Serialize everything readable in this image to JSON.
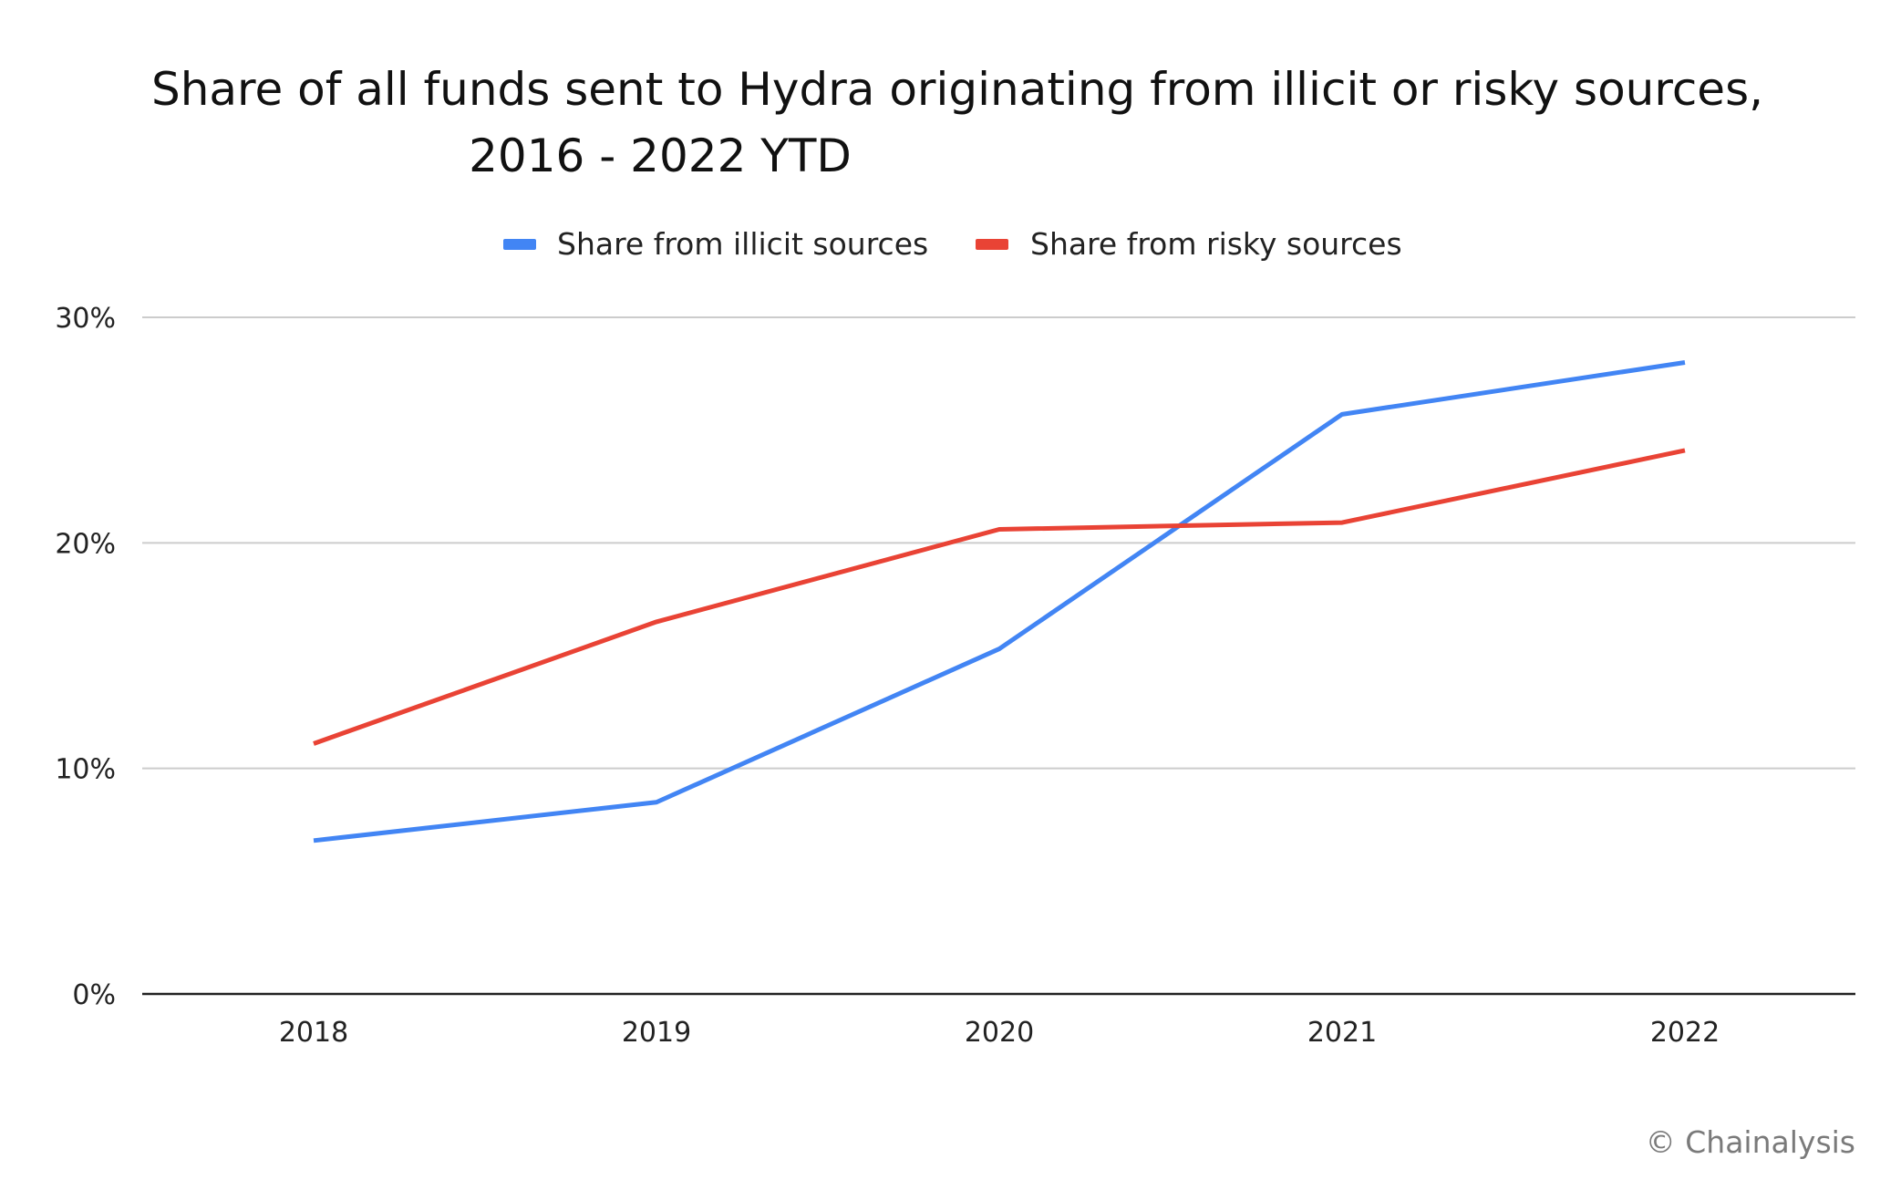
{
  "chart_data": {
    "type": "line",
    "title_lines": [
      "Share of all funds sent to Hydra originating from illicit or risky sources,",
      "2016 - 2022 YTD"
    ],
    "x": [
      "2018",
      "2019",
      "2020",
      "2021",
      "2022"
    ],
    "series": [
      {
        "name": "Share from illicit sources",
        "color": "#4285F4",
        "values": [
          6.8,
          8.5,
          15.3,
          25.7,
          28.0
        ]
      },
      {
        "name": "Share from risky sources",
        "color": "#E94335",
        "values": [
          11.1,
          16.5,
          20.6,
          20.9,
          24.1
        ]
      }
    ],
    "ylim": [
      0,
      30
    ],
    "y_ticks": [
      0,
      10,
      20,
      30
    ],
    "y_tick_labels": [
      "0%",
      "10%",
      "20%",
      "30%"
    ],
    "grid": true,
    "legend_position": "top-center",
    "xlabel": "",
    "ylabel": ""
  },
  "credit": "© Chainalysis"
}
